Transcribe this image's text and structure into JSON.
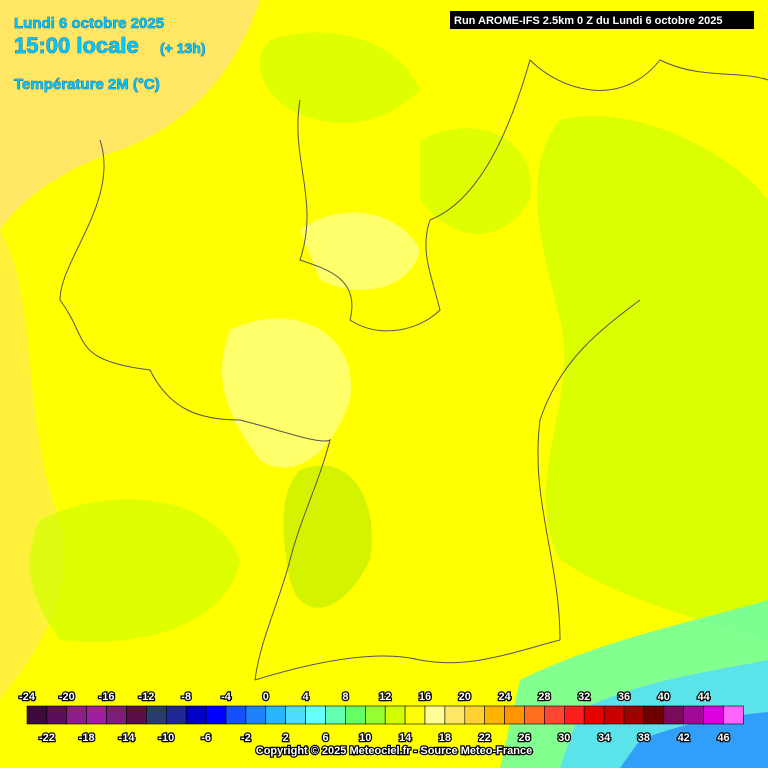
{
  "header": {
    "date": "Lundi 6 octobre 2025",
    "time": "15:00 locale",
    "offset": "(+ 13h)",
    "parameter": "Température 2M (°C)",
    "run": "Run AROME-IFS 2.5km 0 Z du Lundi 6 octobre 2025"
  },
  "legend": {
    "ticks": [
      -24,
      -22,
      -20,
      -18,
      -16,
      -14,
      -12,
      -10,
      -8,
      -6,
      -4,
      -2,
      0,
      2,
      4,
      6,
      8,
      10,
      12,
      14,
      16,
      18,
      20,
      22,
      24,
      26,
      28,
      30,
      32,
      34,
      36,
      38,
      40,
      42,
      44,
      46
    ],
    "colors": [
      "#3c0a3c",
      "#5a0f5a",
      "#8c1e8c",
      "#a01ea0",
      "#7a1e7a",
      "#5a0f46",
      "#283c6e",
      "#1e2896",
      "#0000c8",
      "#0000ff",
      "#1450ff",
      "#1e82ff",
      "#28b4ff",
      "#50dcff",
      "#64ffff",
      "#64ffb4",
      "#64ff64",
      "#96ff32",
      "#d2ff00",
      "#ffff00",
      "#ffff96",
      "#ffe664",
      "#ffd232",
      "#ffb400",
      "#ff9600",
      "#ff6e1e",
      "#ff4632",
      "#ff1e1e",
      "#e60000",
      "#c80000",
      "#a00000",
      "#6e0000",
      "#7a0a5a",
      "#a00a96",
      "#dc00dc",
      "#ff64ff"
    ]
  },
  "footer": {
    "copyright": "Copyright © 2025 Meteociel.fr - Source Meteo-France"
  }
}
